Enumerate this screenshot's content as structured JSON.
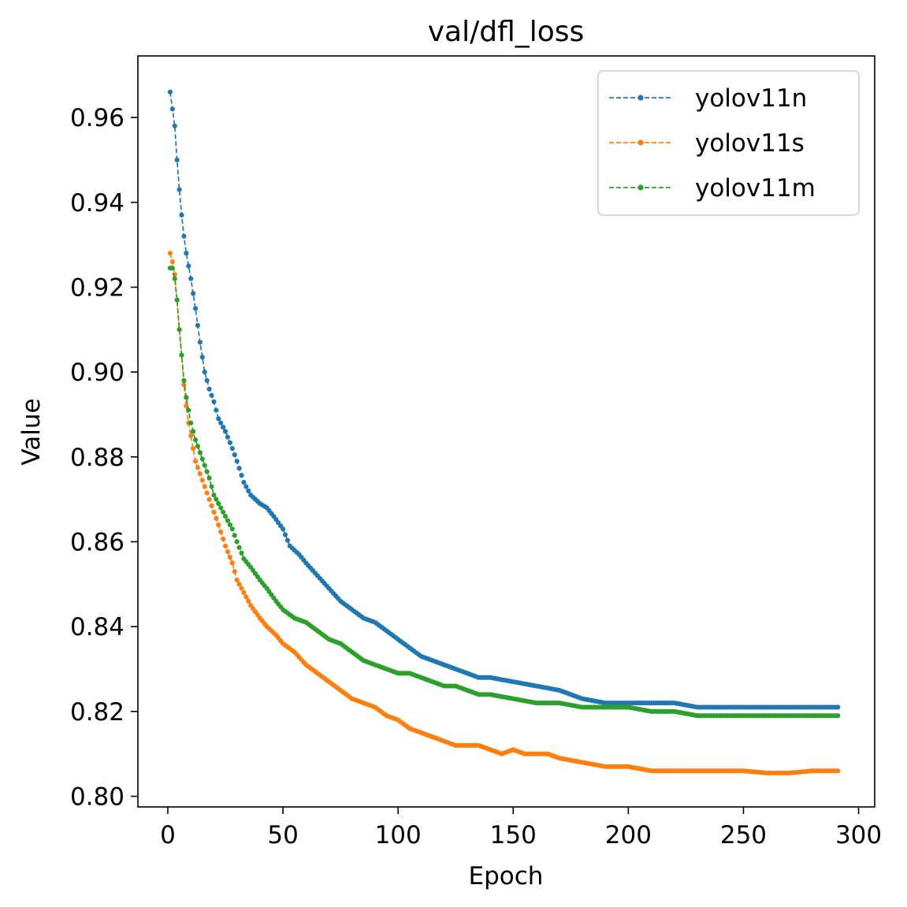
{
  "chart_data": {
    "type": "line",
    "title": "val/dfl_loss",
    "xlabel": "Epoch",
    "ylabel": "Value",
    "xlim": [
      -13,
      307
    ],
    "ylim": [
      0.7975,
      0.9745
    ],
    "x_ticks": [
      0,
      50,
      100,
      150,
      200,
      250,
      300
    ],
    "x_tick_labels": [
      "0",
      "50",
      "100",
      "150",
      "200",
      "250",
      "300"
    ],
    "y_ticks": [
      0.8,
      0.82,
      0.84,
      0.86,
      0.88,
      0.9,
      0.92,
      0.94,
      0.96
    ],
    "y_tick_labels": [
      "0.80",
      "0.82",
      "0.84",
      "0.86",
      "0.88",
      "0.90",
      "0.92",
      "0.94",
      "0.96"
    ],
    "grid": false,
    "legend_position": "top-right",
    "line_style": "dashed",
    "marker": "dot",
    "series": [
      {
        "name": "yolov11n",
        "color": "#1f77b4",
        "points": [
          [
            1,
            0.966
          ],
          [
            2,
            0.962
          ],
          [
            3,
            0.958
          ],
          [
            4,
            0.95
          ],
          [
            5,
            0.943
          ],
          [
            6,
            0.937
          ],
          [
            7,
            0.932
          ],
          [
            8,
            0.928
          ],
          [
            10,
            0.922
          ],
          [
            12,
            0.915
          ],
          [
            14,
            0.907
          ],
          [
            16,
            0.9
          ],
          [
            18,
            0.896
          ],
          [
            20,
            0.893
          ],
          [
            22,
            0.889
          ],
          [
            25,
            0.886
          ],
          [
            28,
            0.882
          ],
          [
            30,
            0.879
          ],
          [
            33,
            0.874
          ],
          [
            36,
            0.871
          ],
          [
            40,
            0.869
          ],
          [
            43,
            0.868
          ],
          [
            46,
            0.866
          ],
          [
            50,
            0.863
          ],
          [
            53,
            0.859
          ],
          [
            57,
            0.857
          ],
          [
            60,
            0.855
          ],
          [
            65,
            0.852
          ],
          [
            70,
            0.849
          ],
          [
            75,
            0.846
          ],
          [
            80,
            0.844
          ],
          [
            85,
            0.842
          ],
          [
            90,
            0.841
          ],
          [
            95,
            0.839
          ],
          [
            100,
            0.837
          ],
          [
            105,
            0.835
          ],
          [
            110,
            0.833
          ],
          [
            115,
            0.832
          ],
          [
            120,
            0.831
          ],
          [
            125,
            0.83
          ],
          [
            130,
            0.829
          ],
          [
            135,
            0.828
          ],
          [
            140,
            0.828
          ],
          [
            150,
            0.827
          ],
          [
            160,
            0.826
          ],
          [
            170,
            0.825
          ],
          [
            180,
            0.823
          ],
          [
            190,
            0.822
          ],
          [
            200,
            0.822
          ],
          [
            210,
            0.822
          ],
          [
            220,
            0.822
          ],
          [
            230,
            0.821
          ],
          [
            240,
            0.821
          ],
          [
            250,
            0.821
          ],
          [
            260,
            0.821
          ],
          [
            270,
            0.821
          ],
          [
            280,
            0.821
          ],
          [
            291,
            0.821
          ]
        ]
      },
      {
        "name": "yolov11s",
        "color": "#ff7f0e",
        "points": [
          [
            1,
            0.928
          ],
          [
            2,
            0.926
          ],
          [
            3,
            0.923
          ],
          [
            4,
            0.917
          ],
          [
            5,
            0.91
          ],
          [
            6,
            0.904
          ],
          [
            7,
            0.897
          ],
          [
            8,
            0.892
          ],
          [
            9,
            0.888
          ],
          [
            10,
            0.885
          ],
          [
            11,
            0.882
          ],
          [
            12,
            0.879
          ],
          [
            14,
            0.876
          ],
          [
            16,
            0.873
          ],
          [
            18,
            0.87
          ],
          [
            20,
            0.867
          ],
          [
            22,
            0.864
          ],
          [
            25,
            0.859
          ],
          [
            28,
            0.855
          ],
          [
            30,
            0.851
          ],
          [
            33,
            0.848
          ],
          [
            36,
            0.845
          ],
          [
            40,
            0.842
          ],
          [
            43,
            0.84
          ],
          [
            47,
            0.838
          ],
          [
            50,
            0.836
          ],
          [
            55,
            0.834
          ],
          [
            60,
            0.831
          ],
          [
            65,
            0.829
          ],
          [
            70,
            0.827
          ],
          [
            75,
            0.825
          ],
          [
            80,
            0.823
          ],
          [
            85,
            0.822
          ],
          [
            90,
            0.821
          ],
          [
            95,
            0.819
          ],
          [
            100,
            0.818
          ],
          [
            105,
            0.816
          ],
          [
            110,
            0.815
          ],
          [
            115,
            0.814
          ],
          [
            120,
            0.813
          ],
          [
            125,
            0.812
          ],
          [
            130,
            0.812
          ],
          [
            135,
            0.812
          ],
          [
            140,
            0.811
          ],
          [
            145,
            0.81
          ],
          [
            150,
            0.811
          ],
          [
            155,
            0.81
          ],
          [
            160,
            0.81
          ],
          [
            165,
            0.81
          ],
          [
            170,
            0.809
          ],
          [
            180,
            0.808
          ],
          [
            190,
            0.807
          ],
          [
            200,
            0.807
          ],
          [
            210,
            0.806
          ],
          [
            220,
            0.806
          ],
          [
            230,
            0.806
          ],
          [
            240,
            0.806
          ],
          [
            250,
            0.806
          ],
          [
            260,
            0.8055
          ],
          [
            270,
            0.8055
          ],
          [
            280,
            0.806
          ],
          [
            291,
            0.806
          ]
        ]
      },
      {
        "name": "yolov11m",
        "color": "#2ca02c",
        "points": [
          [
            1,
            0.9245
          ],
          [
            2,
            0.9245
          ],
          [
            3,
            0.922
          ],
          [
            4,
            0.917
          ],
          [
            5,
            0.91
          ],
          [
            6,
            0.904
          ],
          [
            7,
            0.898
          ],
          [
            8,
            0.894
          ],
          [
            9,
            0.891
          ],
          [
            10,
            0.888
          ],
          [
            11,
            0.886
          ],
          [
            12,
            0.884
          ],
          [
            14,
            0.881
          ],
          [
            16,
            0.878
          ],
          [
            18,
            0.875
          ],
          [
            20,
            0.871
          ],
          [
            22,
            0.869
          ],
          [
            25,
            0.866
          ],
          [
            28,
            0.863
          ],
          [
            30,
            0.86
          ],
          [
            33,
            0.856
          ],
          [
            36,
            0.854
          ],
          [
            40,
            0.851
          ],
          [
            43,
            0.849
          ],
          [
            47,
            0.846
          ],
          [
            50,
            0.844
          ],
          [
            55,
            0.842
          ],
          [
            60,
            0.841
          ],
          [
            65,
            0.839
          ],
          [
            70,
            0.837
          ],
          [
            75,
            0.836
          ],
          [
            80,
            0.834
          ],
          [
            85,
            0.832
          ],
          [
            90,
            0.831
          ],
          [
            95,
            0.83
          ],
          [
            100,
            0.829
          ],
          [
            105,
            0.829
          ],
          [
            110,
            0.828
          ],
          [
            115,
            0.827
          ],
          [
            120,
            0.826
          ],
          [
            125,
            0.826
          ],
          [
            130,
            0.825
          ],
          [
            135,
            0.824
          ],
          [
            140,
            0.824
          ],
          [
            150,
            0.823
          ],
          [
            160,
            0.822
          ],
          [
            170,
            0.822
          ],
          [
            180,
            0.821
          ],
          [
            190,
            0.821
          ],
          [
            200,
            0.821
          ],
          [
            210,
            0.82
          ],
          [
            220,
            0.82
          ],
          [
            230,
            0.819
          ],
          [
            240,
            0.819
          ],
          [
            250,
            0.819
          ],
          [
            260,
            0.819
          ],
          [
            270,
            0.819
          ],
          [
            280,
            0.819
          ],
          [
            291,
            0.819
          ]
        ]
      }
    ]
  }
}
